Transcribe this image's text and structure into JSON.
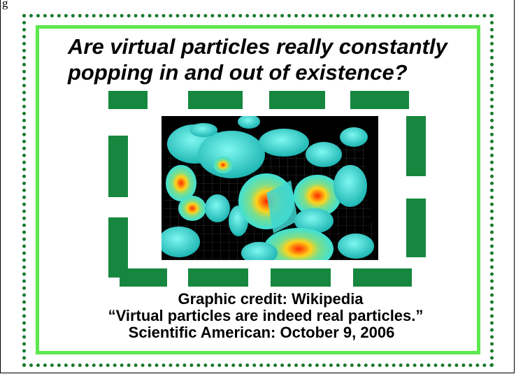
{
  "corner_text": "g",
  "headline": {
    "line1": "Are virtual particles really constantly",
    "line2": "popping in and out of existence?"
  },
  "image": {
    "description_icon": "quantum-foam-visualization"
  },
  "credits": {
    "line1": "Graphic credit: Wikipedia",
    "line2": "“Virtual particles are indeed real particles.”",
    "line3": "Scientific American: October 9, 2006"
  },
  "colors": {
    "dotted_border": "#1a7a2e",
    "inner_border": "#5ee84f",
    "dash": "#17873f"
  }
}
